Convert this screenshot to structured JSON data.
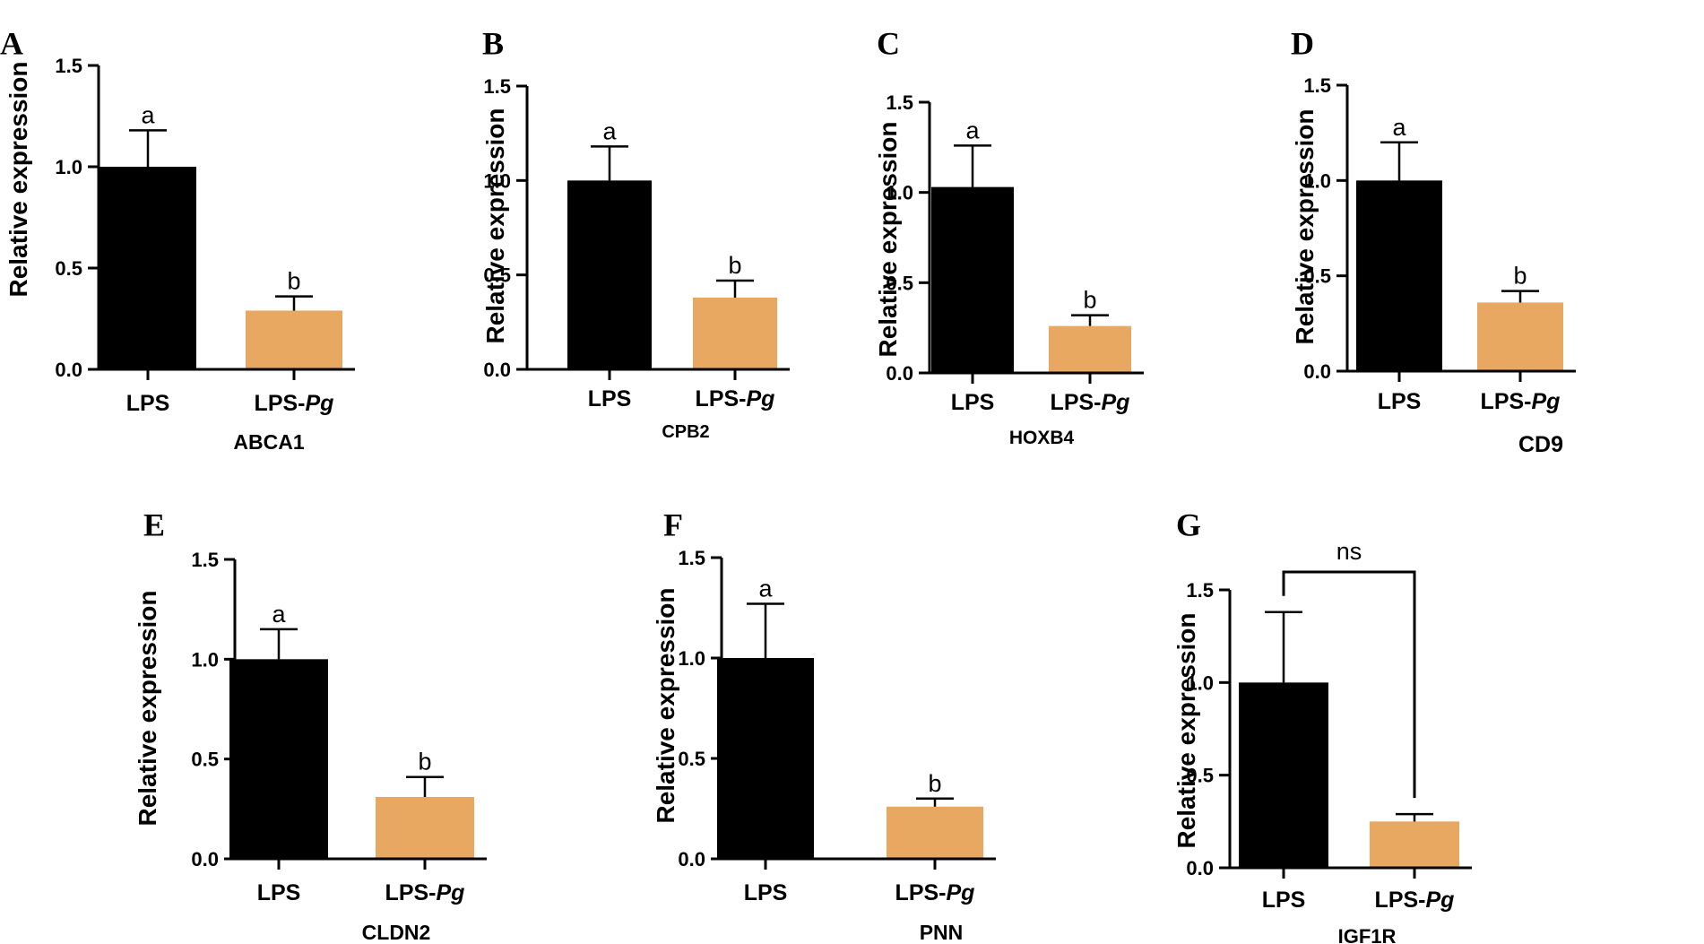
{
  "chart_data": [
    {
      "type": "bar",
      "panel": "A",
      "title": "ABCA1",
      "categories": [
        "LPS",
        "LPS-Pg"
      ],
      "category_parts": [
        {
          "main": "LPS",
          "italic": ""
        },
        {
          "main": "LPS-",
          "italic": "Pg"
        }
      ],
      "values": [
        1.0,
        0.29
      ],
      "errors": [
        0.18,
        0.07
      ],
      "labels": [
        "a",
        "b"
      ],
      "ylabel": "Relative expression",
      "ylim": [
        0,
        1.5
      ],
      "yticks": [
        "0.0",
        "0.5",
        "1.0",
        "1.5"
      ],
      "colors": [
        "#000000",
        "#e8a862"
      ]
    },
    {
      "type": "bar",
      "panel": "B",
      "title": "CPB2",
      "categories": [
        "LPS",
        "LPS-Pg"
      ],
      "category_parts": [
        {
          "main": "LPS",
          "italic": ""
        },
        {
          "main": "LPS-",
          "italic": "Pg"
        }
      ],
      "values": [
        1.0,
        0.38
      ],
      "errors": [
        0.18,
        0.09
      ],
      "labels": [
        "a",
        "b"
      ],
      "ylabel": "Relative expression",
      "ylim": [
        0,
        1.5
      ],
      "yticks": [
        "0.0",
        "0.5",
        "1.0",
        "1.5"
      ],
      "colors": [
        "#000000",
        "#e8a862"
      ]
    },
    {
      "type": "bar",
      "panel": "C",
      "title": "HOXB4",
      "categories": [
        "LPS",
        "LPS-Pg"
      ],
      "category_parts": [
        {
          "main": "LPS",
          "italic": ""
        },
        {
          "main": "LPS-",
          "italic": "Pg"
        }
      ],
      "values": [
        1.03,
        0.26
      ],
      "errors": [
        0.23,
        0.06
      ],
      "labels": [
        "a",
        "b"
      ],
      "ylabel": "Relative expression",
      "ylim": [
        0,
        1.5
      ],
      "yticks": [
        "0.0",
        "0.5",
        "1.0",
        "1.5"
      ],
      "colors": [
        "#000000",
        "#e8a862"
      ]
    },
    {
      "type": "bar",
      "panel": "D",
      "title": "CD9",
      "categories": [
        "LPS",
        "LPS-Pg"
      ],
      "category_parts": [
        {
          "main": "LPS",
          "italic": ""
        },
        {
          "main": "LPS-",
          "italic": "Pg"
        }
      ],
      "values": [
        1.0,
        0.36
      ],
      "errors": [
        0.2,
        0.06
      ],
      "labels": [
        "a",
        "b"
      ],
      "ylabel": "Relative expression",
      "ylim": [
        0,
        1.5
      ],
      "yticks": [
        "0.0",
        "0.5",
        "1.0",
        "1.5"
      ],
      "colors": [
        "#000000",
        "#e8a862"
      ]
    },
    {
      "type": "bar",
      "panel": "E",
      "title": "CLDN2",
      "categories": [
        "LPS",
        "LPS-Pg"
      ],
      "category_parts": [
        {
          "main": "LPS",
          "italic": ""
        },
        {
          "main": "LPS-",
          "italic": "Pg"
        }
      ],
      "values": [
        1.0,
        0.31
      ],
      "errors": [
        0.15,
        0.1
      ],
      "labels": [
        "a",
        "b"
      ],
      "ylabel": "Relative expression",
      "ylim": [
        0,
        1.5
      ],
      "yticks": [
        "0.0",
        "0.5",
        "1.0",
        "1.5"
      ],
      "colors": [
        "#000000",
        "#e8a862"
      ]
    },
    {
      "type": "bar",
      "panel": "F",
      "title": "PNN",
      "categories": [
        "LPS",
        "LPS-Pg"
      ],
      "category_parts": [
        {
          "main": "LPS",
          "italic": ""
        },
        {
          "main": "LPS-",
          "italic": "Pg"
        }
      ],
      "values": [
        1.0,
        0.26
      ],
      "errors": [
        0.27,
        0.04
      ],
      "labels": [
        "a",
        "b"
      ],
      "ylabel": "Relative expression",
      "ylim": [
        0,
        1.5
      ],
      "yticks": [
        "0.0",
        "0.5",
        "1.0",
        "1.5"
      ],
      "colors": [
        "#000000",
        "#e8a862"
      ]
    },
    {
      "type": "bar",
      "panel": "G",
      "title": "IGF1R",
      "categories": [
        "LPS",
        "LPS-Pg"
      ],
      "category_parts": [
        {
          "main": "LPS",
          "italic": ""
        },
        {
          "main": "LPS-",
          "italic": "Pg"
        }
      ],
      "values": [
        1.0,
        0.25
      ],
      "errors": [
        0.38,
        0.04
      ],
      "labels": [
        "",
        ""
      ],
      "comparison": "ns",
      "ylabel": "Relative expression",
      "ylim": [
        0,
        1.5
      ],
      "yticks": [
        "0.0",
        "0.5",
        "1.0",
        "1.5"
      ],
      "colors": [
        "#000000",
        "#e8a862"
      ]
    }
  ]
}
